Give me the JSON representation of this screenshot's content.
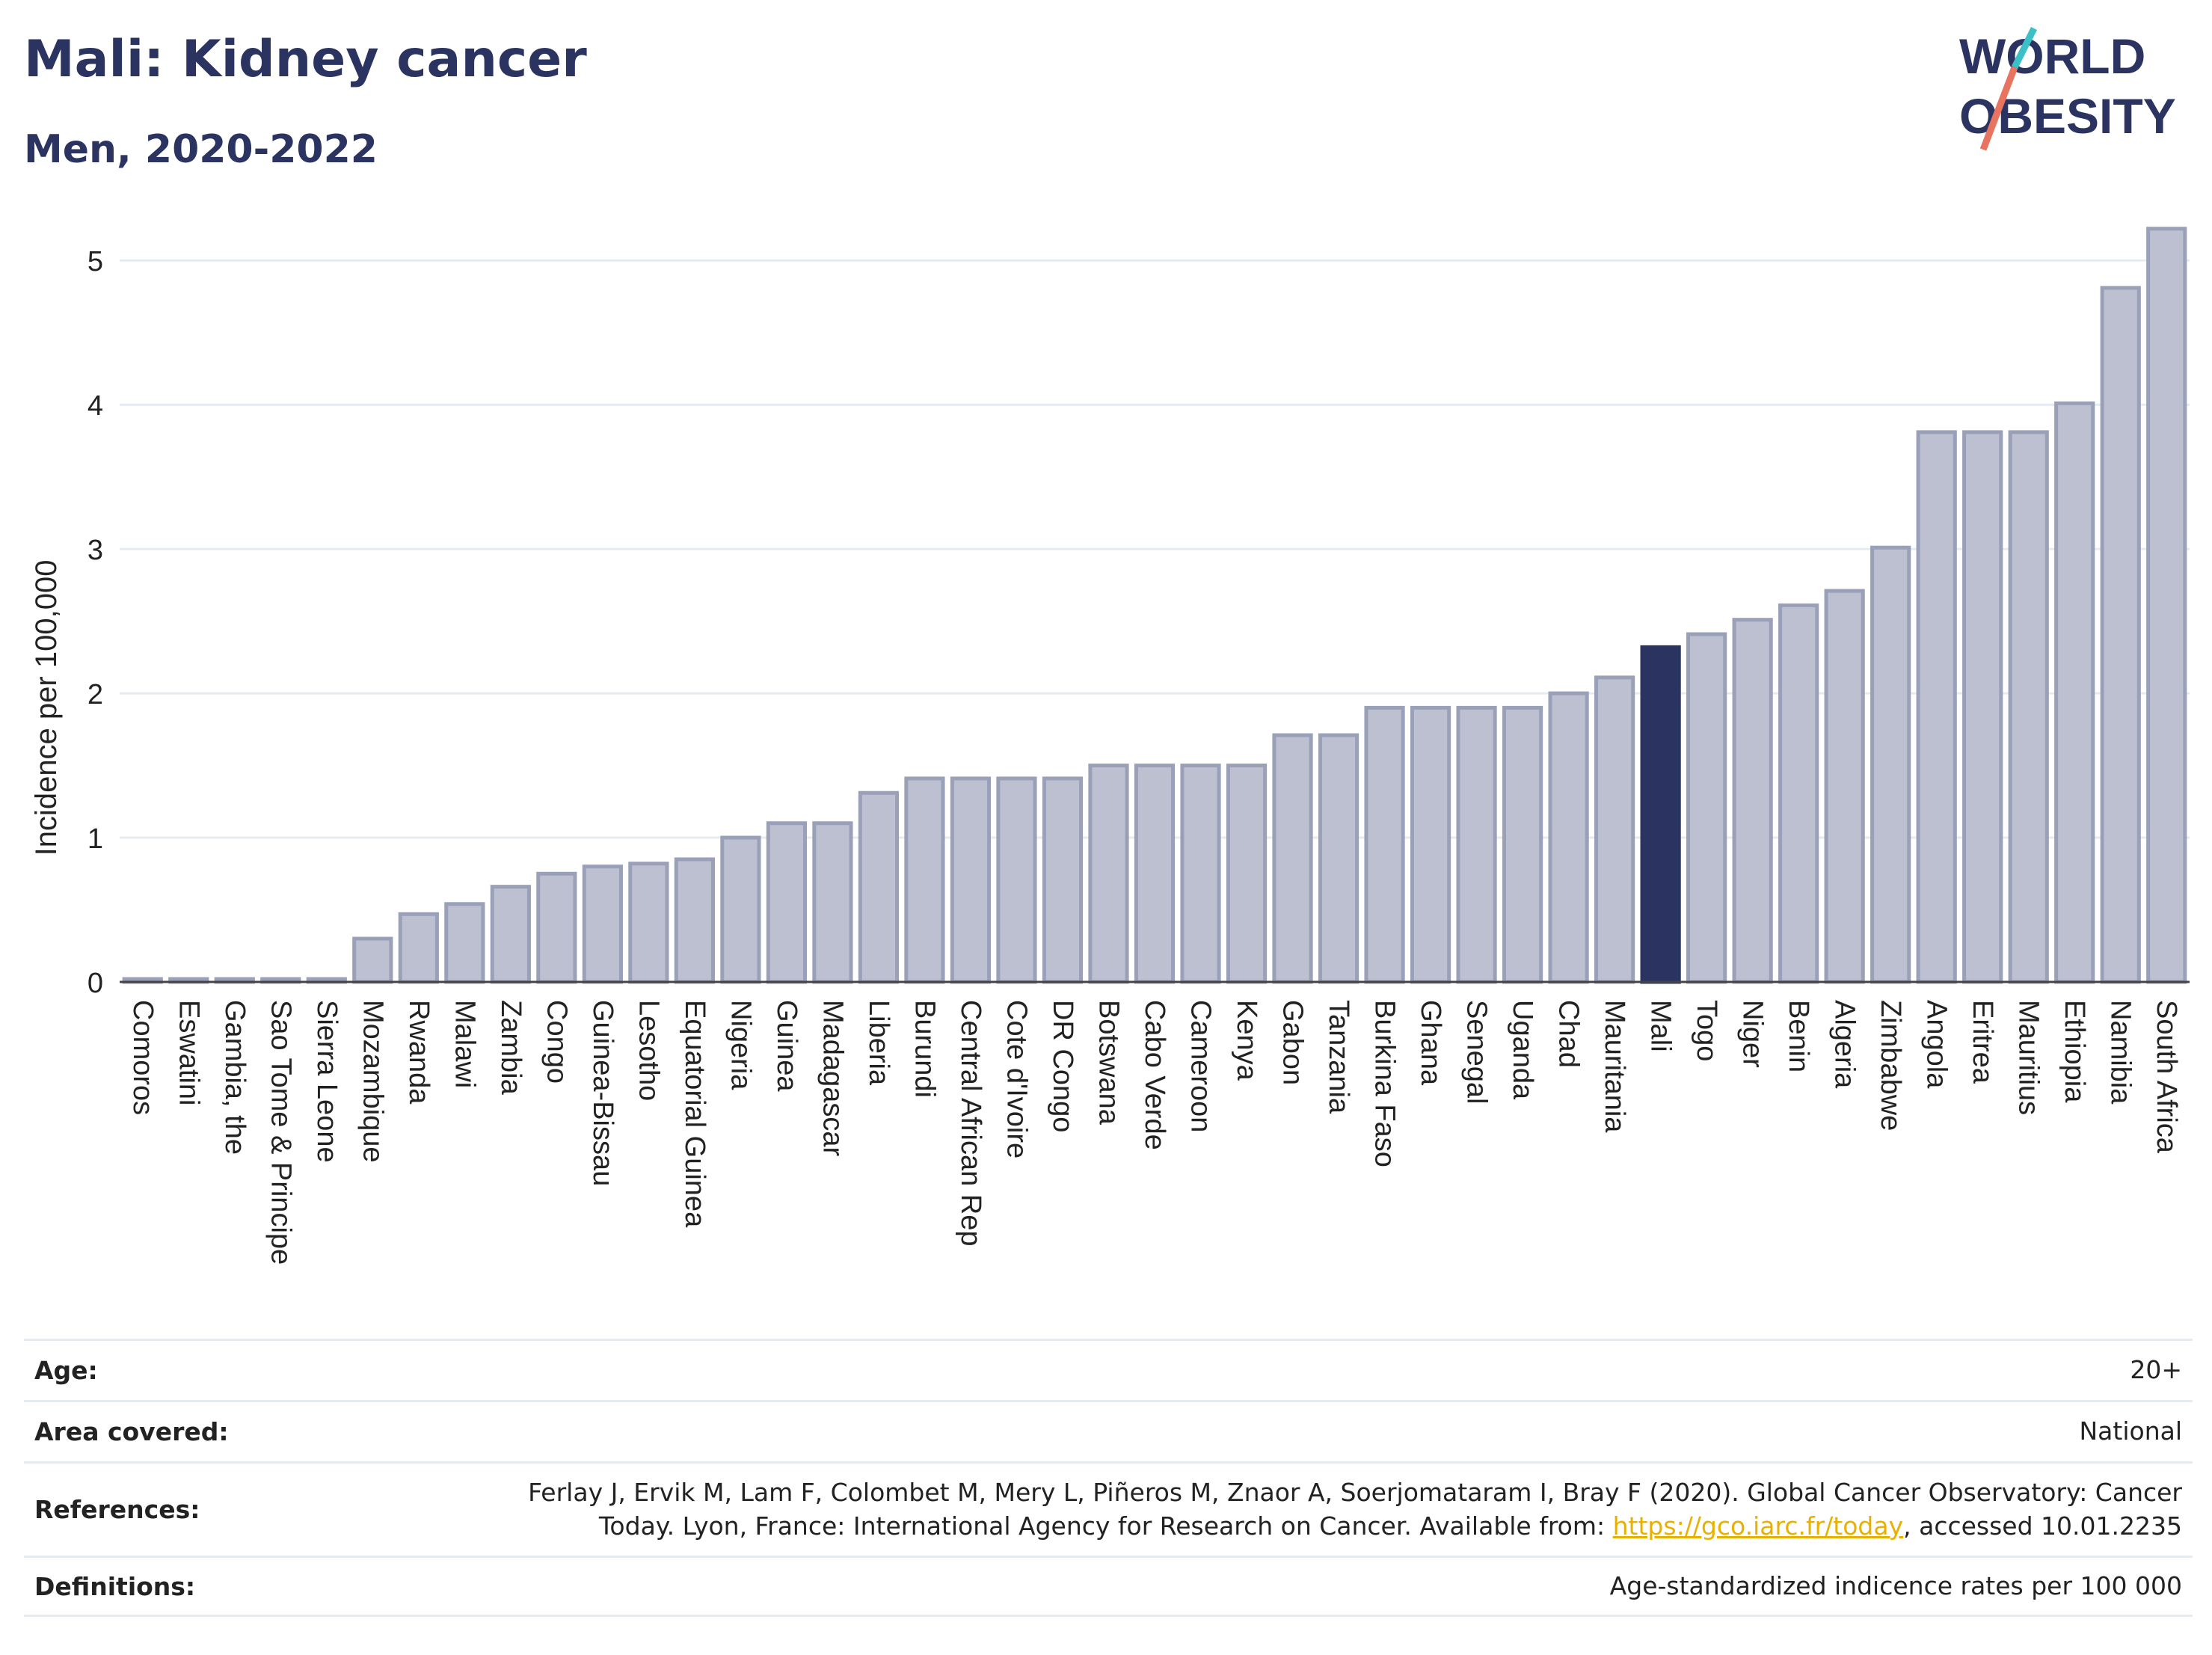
{
  "header": {
    "title": "Mali: Kidney cancer",
    "subtitle": "Men, 2020-2022",
    "logo_line1": "WORLD",
    "logo_line2": "OBESITY"
  },
  "colors": {
    "bar": "#bcc0d0",
    "bar_border": "#9aa0b8",
    "highlight": "#2b3461",
    "title": "#2b3461",
    "grid": "#e6ebf0",
    "logo_teal": "#3cc0c8",
    "logo_coral": "#e8735e"
  },
  "chart_data": {
    "type": "bar",
    "ylabel": "Incidence per 100,000",
    "xlabel": "",
    "ylim": [
      0,
      5.25
    ],
    "yticks": [
      0,
      1,
      2,
      3,
      4,
      5
    ],
    "grid": true,
    "highlight": "Mali",
    "categories": [
      "Comoros",
      "Eswatini",
      "Gambia, the",
      "Sao Tome & Principe",
      "Sierra Leone",
      "Mozambique",
      "Rwanda",
      "Malawi",
      "Zambia",
      "Congo",
      "Guinea-Bissau",
      "Lesotho",
      "Equatorial Guinea",
      "Nigeria",
      "Guinea",
      "Madagascar",
      "Liberia",
      "Burundi",
      "Central African Rep",
      "Cote d'Ivoire",
      "DR Congo",
      "Botswana",
      "Cabo Verde",
      "Cameroon",
      "Kenya",
      "Gabon",
      "Tanzania",
      "Burkina Faso",
      "Ghana",
      "Senegal",
      "Uganda",
      "Chad",
      "Mauritania",
      "Mali",
      "Togo",
      "Niger",
      "Benin",
      "Algeria",
      "Zimbabwe",
      "Angola",
      "Eritrea",
      "Mauritius",
      "Ethiopia",
      "Namibia",
      "South Africa"
    ],
    "values": [
      0.02,
      0.02,
      0.02,
      0.02,
      0.02,
      0.3,
      0.47,
      0.54,
      0.66,
      0.75,
      0.8,
      0.82,
      0.85,
      1.0,
      1.1,
      1.1,
      1.31,
      1.41,
      1.41,
      1.41,
      1.41,
      1.5,
      1.5,
      1.5,
      1.5,
      1.71,
      1.71,
      1.9,
      1.9,
      1.9,
      1.9,
      2.0,
      2.11,
      2.32,
      2.41,
      2.51,
      2.61,
      2.71,
      3.01,
      3.81,
      3.81,
      3.81,
      4.01,
      4.81,
      5.22
    ]
  },
  "meta": {
    "age_label": "Age:",
    "age_value": "20+",
    "area_label": "Area covered:",
    "area_value": "National",
    "ref_label": "References:",
    "ref_text1": "Ferlay J, Ervik M, Lam F, Colombet M, Mery L, Piñeros M, Znaor A, Soerjomataram I, Bray F (2020). Global Cancer Observatory: Cancer",
    "ref_text2_pre": "Today. Lyon, France: International Agency for Research on Cancer. Available from: ",
    "ref_link": "https://gco.iarc.fr/today",
    "ref_text2_post": ", accessed 10.01.2235",
    "def_label": "Definitions:",
    "def_value": "Age-standardized indicence rates per 100 000"
  }
}
